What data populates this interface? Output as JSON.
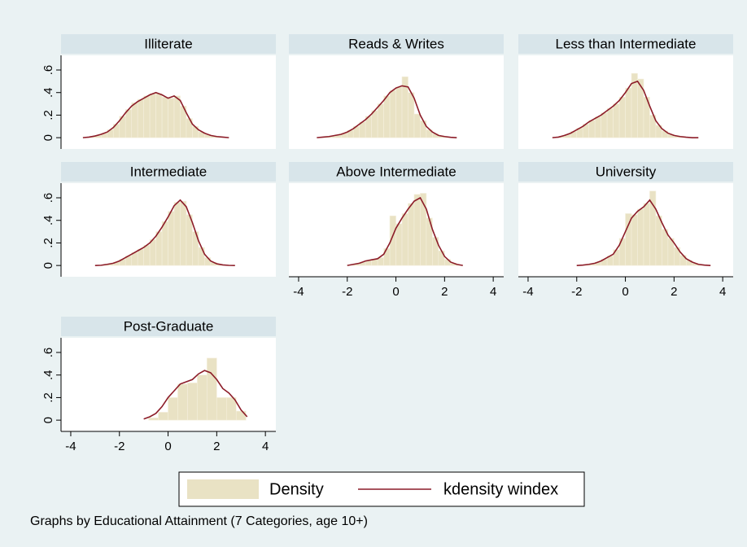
{
  "chart_data": [
    {
      "type": "histogram",
      "title": "Illiterate",
      "bins": [
        -3.5,
        -3.25,
        -3,
        -2.75,
        -2.5,
        -2.25,
        -2,
        -1.75,
        -1.5,
        -1.25,
        -1,
        -0.75,
        -0.5,
        -0.25,
        0,
        0.25,
        0.5,
        0.75,
        1,
        1.25,
        1.5,
        1.75,
        2,
        2.25,
        2.5
      ],
      "values": [
        0.002,
        0.01,
        0.02,
        0.04,
        0.07,
        0.12,
        0.19,
        0.25,
        0.31,
        0.34,
        0.37,
        0.39,
        0.39,
        0.36,
        0.35,
        0.37,
        0.28,
        0.17,
        0.1,
        0.05,
        0.03,
        0.015,
        0.007,
        0.002
      ],
      "line": {
        "x": [
          -3.5,
          -3.25,
          -3,
          -2.75,
          -2.5,
          -2.25,
          -2,
          -1.75,
          -1.5,
          -1.25,
          -1,
          -0.75,
          -0.5,
          -0.25,
          0,
          0.25,
          0.5,
          0.75,
          1,
          1.25,
          1.5,
          1.75,
          2,
          2.25,
          2.5
        ],
        "values": [
          0,
          0.005,
          0.015,
          0.03,
          0.05,
          0.09,
          0.15,
          0.22,
          0.28,
          0.32,
          0.35,
          0.38,
          0.4,
          0.38,
          0.35,
          0.37,
          0.33,
          0.22,
          0.12,
          0.07,
          0.04,
          0.02,
          0.01,
          0.005,
          0
        ]
      },
      "xlim": [
        -4.4,
        4.43
      ],
      "ylim": [
        -0.1,
        0.73
      ],
      "yticks": [
        0,
        {
          "value": 0.2,
          "label": ".2"
        },
        {
          "value": 0.4,
          "label": ".4"
        },
        {
          "value": 0.6,
          "label": ".6"
        }
      ]
    },
    {
      "type": "histogram",
      "title": "Reads & Writes",
      "bins": [
        -3.25,
        -3,
        -2.75,
        -2.5,
        -2.25,
        -2,
        -1.75,
        -1.5,
        -1.25,
        -1,
        -0.75,
        -0.5,
        -0.25,
        0,
        0.25,
        0.5,
        0.75,
        1,
        1.25,
        1.5,
        1.75,
        2,
        2.25,
        2.5
      ],
      "values": [
        0.002,
        0.007,
        0.015,
        0.025,
        0.04,
        0.065,
        0.1,
        0.14,
        0.19,
        0.24,
        0.3,
        0.37,
        0.42,
        0.45,
        0.54,
        0.4,
        0.21,
        0.15,
        0.07,
        0.035,
        0.015,
        0.006,
        0.001
      ],
      "line": {
        "x": [
          -3.25,
          -3,
          -2.75,
          -2.5,
          -2.25,
          -2,
          -1.75,
          -1.5,
          -1.25,
          -1,
          -0.75,
          -0.5,
          -0.25,
          0,
          0.25,
          0.5,
          0.75,
          1,
          1.25,
          1.5,
          1.75,
          2,
          2.25,
          2.5
        ],
        "values": [
          0,
          0.005,
          0.01,
          0.02,
          0.03,
          0.05,
          0.08,
          0.12,
          0.16,
          0.21,
          0.27,
          0.33,
          0.4,
          0.44,
          0.46,
          0.45,
          0.35,
          0.2,
          0.1,
          0.05,
          0.02,
          0.01,
          0.003,
          0
        ]
      },
      "xlim": [
        -4.4,
        4.43
      ],
      "ylim": [
        -0.1,
        0.73
      ]
    },
    {
      "type": "histogram",
      "title": "Less than Intermediate",
      "bins": [
        -3,
        -2.75,
        -2.5,
        -2.25,
        -2,
        -1.75,
        -1.5,
        -1.25,
        -1,
        -0.75,
        -0.5,
        -0.25,
        0,
        0.25,
        0.5,
        0.75,
        1,
        1.25,
        1.5,
        1.75,
        2,
        2.25,
        2.5,
        2.75,
        3
      ],
      "values": [
        0.002,
        0.012,
        0.03,
        0.055,
        0.085,
        0.12,
        0.155,
        0.185,
        0.22,
        0.26,
        0.3,
        0.36,
        0.44,
        0.57,
        0.52,
        0.36,
        0.2,
        0.11,
        0.06,
        0.03,
        0.015,
        0.007,
        0.002,
        0
      ],
      "line": {
        "x": [
          -3,
          -2.75,
          -2.5,
          -2.25,
          -2,
          -1.75,
          -1.5,
          -1.25,
          -1,
          -0.75,
          -0.5,
          -0.25,
          0,
          0.25,
          0.5,
          0.75,
          1,
          1.25,
          1.5,
          1.75,
          2,
          2.25,
          2.5,
          2.75,
          3
        ],
        "values": [
          0,
          0.005,
          0.02,
          0.04,
          0.07,
          0.1,
          0.14,
          0.17,
          0.2,
          0.24,
          0.28,
          0.33,
          0.4,
          0.48,
          0.5,
          0.42,
          0.28,
          0.15,
          0.08,
          0.04,
          0.02,
          0.01,
          0.004,
          0,
          0
        ]
      },
      "xlim": [
        -4.4,
        4.43
      ],
      "ylim": [
        -0.1,
        0.73
      ]
    },
    {
      "type": "histogram",
      "title": "Intermediate",
      "bins": [
        -3,
        -2.75,
        -2.5,
        -2.25,
        -2,
        -1.75,
        -1.5,
        -1.25,
        -1,
        -0.75,
        -0.5,
        -0.25,
        0,
        0.25,
        0.5,
        0.75,
        1,
        1.25,
        1.5,
        1.75,
        2,
        2.25,
        2.5,
        2.75
      ],
      "values": [
        0.001,
        0.006,
        0.015,
        0.03,
        0.055,
        0.085,
        0.115,
        0.145,
        0.18,
        0.23,
        0.3,
        0.39,
        0.48,
        0.56,
        0.57,
        0.45,
        0.3,
        0.16,
        0.07,
        0.028,
        0.01,
        0.003,
        0.001
      ],
      "line": {
        "x": [
          -3,
          -2.75,
          -2.5,
          -2.25,
          -2,
          -1.75,
          -1.5,
          -1.25,
          -1,
          -0.75,
          -0.5,
          -0.25,
          0,
          0.25,
          0.5,
          0.75,
          1,
          1.25,
          1.5,
          1.75,
          2,
          2.25,
          2.5,
          2.75
        ],
        "values": [
          0,
          0.002,
          0.01,
          0.02,
          0.04,
          0.07,
          0.1,
          0.13,
          0.16,
          0.2,
          0.26,
          0.34,
          0.43,
          0.53,
          0.58,
          0.52,
          0.38,
          0.22,
          0.1,
          0.04,
          0.015,
          0.005,
          0.001,
          0
        ]
      },
      "xlim": [
        -4.4,
        4.43
      ],
      "ylim": [
        -0.1,
        0.73
      ],
      "yticks": [
        0,
        {
          "value": 0.2,
          "label": ".2"
        },
        {
          "value": 0.4,
          "label": ".4"
        },
        {
          "value": 0.6,
          "label": ".6"
        }
      ]
    },
    {
      "type": "histogram",
      "title": "Above Intermediate",
      "bins": [
        -2,
        -1.75,
        -1.5,
        -1.25,
        -1,
        -0.75,
        -0.5,
        -0.25,
        0,
        0.25,
        0.5,
        0.75,
        1,
        1.25,
        1.5,
        1.75,
        2,
        2.25,
        2.5,
        2.75
      ],
      "values": [
        0.005,
        0.015,
        0.03,
        0.045,
        0.055,
        0.07,
        0.15,
        0.44,
        0.37,
        0.46,
        0.55,
        0.63,
        0.64,
        0.42,
        0.25,
        0.13,
        0.055,
        0.02,
        0.005
      ],
      "line": {
        "x": [
          -2,
          -1.75,
          -1.5,
          -1.25,
          -1,
          -0.75,
          -0.5,
          -0.25,
          0,
          0.25,
          0.5,
          0.75,
          1,
          1.25,
          1.5,
          1.75,
          2,
          2.25,
          2.5,
          2.75
        ],
        "values": [
          0,
          0.01,
          0.02,
          0.04,
          0.05,
          0.06,
          0.1,
          0.2,
          0.33,
          0.42,
          0.5,
          0.57,
          0.6,
          0.5,
          0.32,
          0.18,
          0.08,
          0.03,
          0.01,
          0
        ]
      },
      "xlim": [
        -4.4,
        4.43
      ],
      "ylim": [
        -0.1,
        0.73
      ],
      "xticks": [
        -4,
        -2,
        0,
        2,
        4
      ]
    },
    {
      "type": "histogram",
      "title": "University",
      "bins": [
        -2,
        -1.75,
        -1.5,
        -1.25,
        -1,
        -0.75,
        -0.5,
        -0.25,
        0,
        0.25,
        0.5,
        0.75,
        1,
        1.25,
        1.5,
        1.75,
        2,
        2.25,
        2.5,
        2.75,
        3,
        3.25,
        3.5
      ],
      "values": [
        0.002,
        0.006,
        0.015,
        0.03,
        0.055,
        0.085,
        0.14,
        0.24,
        0.46,
        0.45,
        0.5,
        0.55,
        0.66,
        0.44,
        0.32,
        0.24,
        0.16,
        0.09,
        0.045,
        0.02,
        0.007,
        0.002
      ],
      "line": {
        "x": [
          -2,
          -1.75,
          -1.5,
          -1.25,
          -1,
          -0.75,
          -0.5,
          -0.25,
          0,
          0.25,
          0.5,
          0.75,
          1,
          1.25,
          1.5,
          1.75,
          2,
          2.25,
          2.5,
          2.75,
          3,
          3.25,
          3.5
        ],
        "values": [
          0,
          0.003,
          0.01,
          0.02,
          0.04,
          0.07,
          0.1,
          0.18,
          0.3,
          0.42,
          0.48,
          0.52,
          0.58,
          0.5,
          0.38,
          0.27,
          0.2,
          0.12,
          0.06,
          0.03,
          0.01,
          0.003,
          0
        ]
      },
      "xlim": [
        -4.4,
        4.43
      ],
      "ylim": [
        -0.1,
        0.73
      ],
      "xticks": [
        -4,
        -2,
        0,
        2,
        4
      ]
    },
    {
      "type": "histogram",
      "title": "Post-Graduate",
      "bins": [
        -0.8,
        -0.4,
        0,
        0.4,
        0.8,
        1.2,
        1.6,
        2,
        2.4,
        2.8,
        3.2
      ],
      "values": [
        0.02,
        0.07,
        0.2,
        0.32,
        0.33,
        0.4,
        0.55,
        0.2,
        0.2,
        0.08
      ],
      "line": {
        "x": [
          -1,
          -0.75,
          -0.5,
          -0.25,
          0,
          0.25,
          0.5,
          0.75,
          1,
          1.25,
          1.5,
          1.75,
          2,
          2.25,
          2.5,
          2.75,
          3,
          3.25
        ],
        "values": [
          0.01,
          0.03,
          0.06,
          0.12,
          0.2,
          0.26,
          0.32,
          0.34,
          0.36,
          0.41,
          0.44,
          0.42,
          0.36,
          0.28,
          0.24,
          0.18,
          0.09,
          0.03
        ]
      },
      "xlim": [
        -4.4,
        4.43
      ],
      "ylim": [
        -0.1,
        0.73
      ],
      "xticks": [
        -4,
        -2,
        0,
        2,
        4
      ],
      "yticks": [
        0,
        {
          "value": 0.2,
          "label": ".2"
        },
        {
          "value": 0.4,
          "label": ".4"
        },
        {
          "value": 0.6,
          "label": ".6"
        }
      ]
    }
  ],
  "legend": {
    "position": "bottom",
    "entries": [
      {
        "name": "Density",
        "color": "#e9e2c4"
      },
      {
        "name": "kdensity windex",
        "color": "#8c1c28"
      }
    ]
  },
  "note": "Graphs by Educational Attainment (7 Categories, age 10+)"
}
